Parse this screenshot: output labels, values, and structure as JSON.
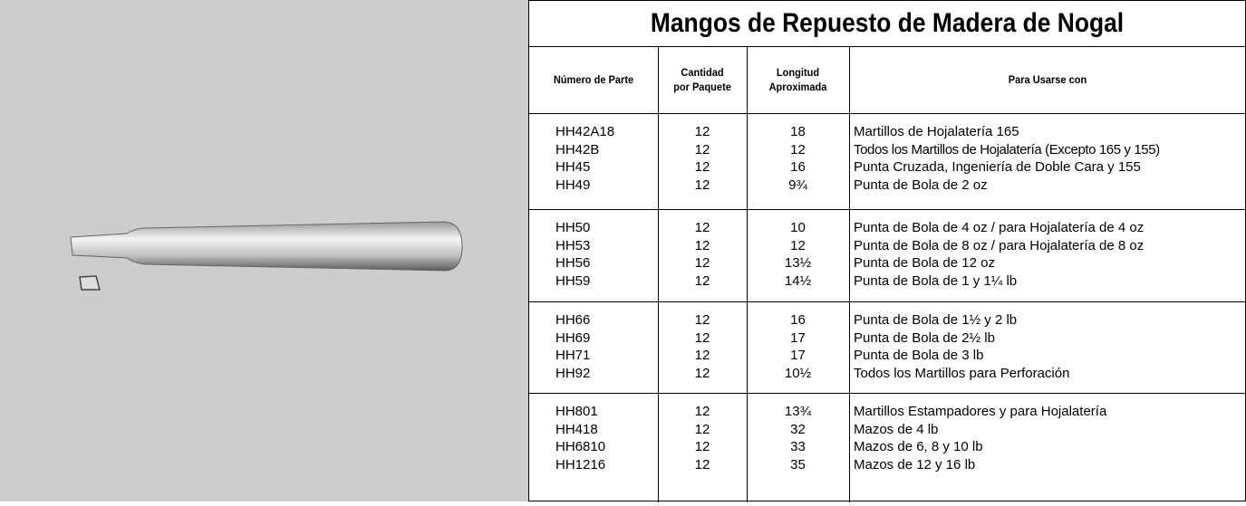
{
  "table": {
    "title": "Mangos de Repuesto de Madera de Nogal",
    "headers": [
      [
        "Número de Parte"
      ],
      [
        "Cantidad",
        "por Paquete"
      ],
      [
        "Longitud",
        "Aproximada"
      ],
      [
        "Para Usarse con"
      ]
    ],
    "groups": [
      [
        [
          "HH42A18",
          12,
          18,
          "Martillos de Hojalatería 165"
        ],
        [
          "HH42B",
          12,
          12,
          "Todos los Martillos de Hojalatería (Excepto 165 y 155)"
        ],
        [
          "HH45",
          12,
          16,
          "Punta Cruzada, Ingeniería de Doble Cara y 155"
        ],
        [
          "HH49",
          12,
          "9¾",
          "Punta de Bola de 2 oz"
        ]
      ],
      [
        [
          "HH50",
          12,
          10,
          "Punta de Bola de 4 oz / para Hojalatería de 4 oz"
        ],
        [
          "HH53",
          12,
          12,
          "Punta de Bola de 8 oz / para Hojalatería de 8 oz"
        ],
        [
          "HH56",
          12,
          "13½",
          "Punta de Bola de 12 oz"
        ],
        [
          "HH59",
          12,
          "14½",
          "Punta de Bola de 1 y 1¼ lb"
        ]
      ],
      [
        [
          "HH66",
          12,
          16,
          "Punta de Bola de 1½ y 2 lb"
        ],
        [
          "HH69",
          12,
          17,
          "Punta de Bola de 2½ lb"
        ],
        [
          "HH71",
          12,
          17,
          "Punta de Bola de 3 lb"
        ],
        [
          "HH92",
          12,
          "10½",
          "Todos los Martillos para Perforación"
        ]
      ],
      [
        [
          "HH801",
          12,
          "13¾",
          "Martillos Estampadores y para Hojalatería"
        ],
        [
          "HH418",
          12,
          32,
          "Mazos de 4 lb"
        ],
        [
          "HH6810",
          12,
          33,
          "Mazos de 6, 8 y 10 lb"
        ],
        [
          "HH1216",
          12,
          35,
          "Mazos de 12 y 16 lb"
        ]
      ]
    ]
  }
}
